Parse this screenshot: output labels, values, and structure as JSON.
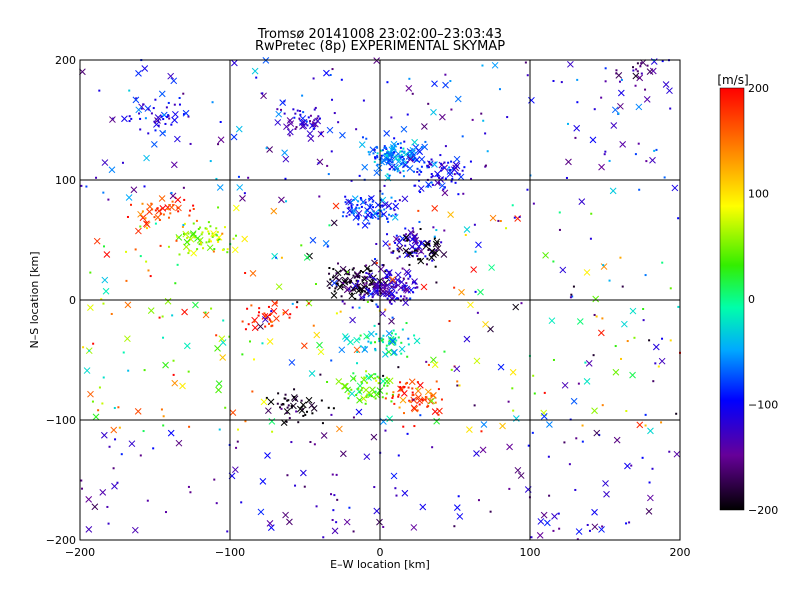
{
  "chart_data": {
    "type": "scatter",
    "title": "Tromsø 20141008 23:02:00–23:03:43",
    "subtitle": "RwPretec (8p) EXPERIMENTAL SKYMAP",
    "xlabel": "E–W location [km]",
    "ylabel": "N–S location [km]",
    "xlim": [
      -200,
      200
    ],
    "ylim": [
      -200,
      200
    ],
    "xticks": [
      "−200",
      "−100",
      "0",
      "100",
      "200"
    ],
    "yticks": [
      "−200",
      "−100",
      "0",
      "100",
      "200"
    ],
    "xtick_values": [
      -200,
      -100,
      0,
      100,
      200
    ],
    "ytick_values": [
      -200,
      -100,
      0,
      100,
      200
    ],
    "grid": true,
    "colorbar": {
      "label": "[m/s]",
      "range": [
        -200,
        200
      ],
      "ticks": [
        "200",
        "100",
        "0",
        "−100",
        "−200"
      ],
      "tick_values": [
        200,
        100,
        0,
        -100,
        -200
      ],
      "colormap": "rainbow-black"
    },
    "marker_types": [
      "dot",
      "x"
    ],
    "clusters": [
      {
        "x": 10,
        "y": 120,
        "v": -60,
        "n": 140
      },
      {
        "x": 40,
        "y": 105,
        "v": -100,
        "n": 70
      },
      {
        "x": -5,
        "y": 75,
        "v": -80,
        "n": 90
      },
      {
        "x": 20,
        "y": 45,
        "v": -120,
        "n": 60
      },
      {
        "x": -15,
        "y": 15,
        "v": -200,
        "n": 110
      },
      {
        "x": 5,
        "y": 10,
        "v": -120,
        "n": 130
      },
      {
        "x": 30,
        "y": 40,
        "v": -200,
        "n": 35
      },
      {
        "x": -115,
        "y": 50,
        "v": 60,
        "n": 60
      },
      {
        "x": -145,
        "y": 75,
        "v": 170,
        "n": 40
      },
      {
        "x": -75,
        "y": -12,
        "v": 190,
        "n": 30
      },
      {
        "x": 2,
        "y": -35,
        "v": -20,
        "n": 60
      },
      {
        "x": -10,
        "y": -75,
        "v": 40,
        "n": 60
      },
      {
        "x": 25,
        "y": -80,
        "v": 180,
        "n": 55
      },
      {
        "x": -55,
        "y": -88,
        "v": -200,
        "n": 45
      },
      {
        "x": -150,
        "y": 155,
        "v": -100,
        "n": 40
      },
      {
        "x": -50,
        "y": 150,
        "v": -120,
        "n": 50
      },
      {
        "x": 170,
        "y": 190,
        "v": -150,
        "n": 25
      }
    ]
  }
}
